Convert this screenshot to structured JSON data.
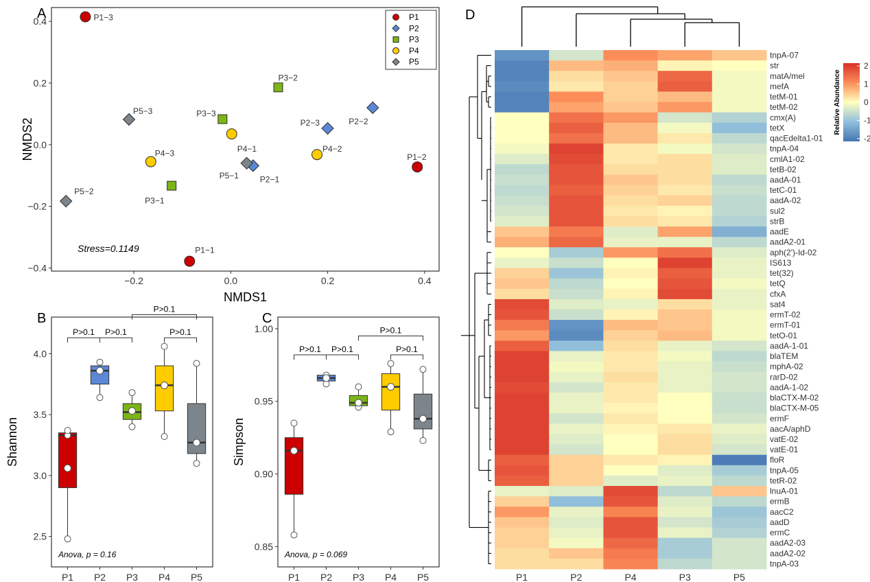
{
  "colors": {
    "P1": "#cc0000",
    "P2": "#5b87d6",
    "P3": "#7cb518",
    "P4": "#ffcc00",
    "P5": "#7d858c"
  },
  "chart_data": [
    {
      "panel": "A",
      "type": "scatter",
      "xlabel": "NMDS1",
      "ylabel": "NMDS2",
      "xlim": [
        -0.37,
        0.43
      ],
      "ylim": [
        -0.41,
        0.445
      ],
      "xticks": [
        -0.2,
        0.0,
        0.2,
        0.4
      ],
      "xtick_labels": [
        "−0.2",
        "0.0",
        "0.2",
        "0.4"
      ],
      "yticks": [
        -0.4,
        -0.2,
        0.0,
        0.2,
        0.4
      ],
      "ytick_labels": [
        "−0.4",
        "−0.2",
        "0.0",
        "0.2",
        "0.4"
      ],
      "legend": [
        "P1",
        "P2",
        "P3",
        "P4",
        "P5"
      ],
      "legend_position": "top-right",
      "stress": "Stress=0.1149",
      "points": [
        {
          "label": "P1−1",
          "group": "P1",
          "x": -0.085,
          "y": -0.378
        },
        {
          "label": "P1−2",
          "group": "P1",
          "x": 0.385,
          "y": -0.072
        },
        {
          "label": "P1−3",
          "group": "P1",
          "x": -0.3,
          "y": 0.415
        },
        {
          "label": "P2−1",
          "group": "P2",
          "x": 0.046,
          "y": -0.068
        },
        {
          "label": "P2−2",
          "group": "P2",
          "x": 0.293,
          "y": 0.12
        },
        {
          "label": "P2−3",
          "group": "P2",
          "x": 0.2,
          "y": 0.053
        },
        {
          "label": "P3−1",
          "group": "P3",
          "x": -0.122,
          "y": -0.133
        },
        {
          "label": "P3−2",
          "group": "P3",
          "x": 0.098,
          "y": 0.186
        },
        {
          "label": "P3−3",
          "group": "P3",
          "x": -0.017,
          "y": 0.083
        },
        {
          "label": "P4−1",
          "group": "P4",
          "x": 0.002,
          "y": 0.035
        },
        {
          "label": "P4−2",
          "group": "P4",
          "x": 0.178,
          "y": -0.032
        },
        {
          "label": "P4−3",
          "group": "P4",
          "x": -0.165,
          "y": -0.055
        },
        {
          "label": "P5−1",
          "group": "P5",
          "x": 0.033,
          "y": -0.06
        },
        {
          "label": "P5−2",
          "group": "P5",
          "x": -0.34,
          "y": -0.183
        },
        {
          "label": "P5−3",
          "group": "P5",
          "x": -0.21,
          "y": 0.082
        }
      ]
    },
    {
      "panel": "B",
      "type": "box",
      "ylabel": "Shannon",
      "ylim": [
        2.25,
        4.3
      ],
      "yticks": [
        2.5,
        3.0,
        3.5,
        4.0
      ],
      "ytick_labels": [
        "2.5",
        "3.0",
        "3.5",
        "4.0"
      ],
      "categories": [
        "P1",
        "P2",
        "P3",
        "P4",
        "P5"
      ],
      "boxes": [
        {
          "q1": 2.9,
          "median": 3.33,
          "q3": 3.35,
          "low": 2.48,
          "high": 3.37,
          "mean": 3.06,
          "points": [
            2.48,
            3.33,
            3.37
          ]
        },
        {
          "q1": 3.75,
          "median": 3.86,
          "q3": 3.9,
          "low": 3.64,
          "high": 3.93,
          "mean": 3.86,
          "points": [
            3.64,
            3.86,
            3.93
          ]
        },
        {
          "q1": 3.46,
          "median": 3.52,
          "q3": 3.59,
          "low": 3.4,
          "high": 3.68,
          "mean": 3.53,
          "points": [
            3.4,
            3.53,
            3.68
          ]
        },
        {
          "q1": 3.53,
          "median": 3.74,
          "q3": 3.9,
          "low": 3.32,
          "high": 4.06,
          "mean": 3.74,
          "points": [
            3.32,
            3.74,
            4.06
          ]
        },
        {
          "q1": 3.18,
          "median": 3.27,
          "q3": 3.59,
          "low": 3.1,
          "high": 3.92,
          "mean": 3.27,
          "points": [
            3.1,
            3.27,
            3.92
          ]
        }
      ],
      "comparisons": [
        {
          "from": 0,
          "to": 1,
          "y": 4.13,
          "label": "P>0.1"
        },
        {
          "from": 1,
          "to": 2,
          "y": 4.13,
          "label": "P>0.1"
        },
        {
          "from": 3,
          "to": 4,
          "y": 4.13,
          "label": "P>0.1"
        },
        {
          "from": 2,
          "to": 4,
          "y": 4.32,
          "label": "P>0.1"
        }
      ],
      "note": "Anova, p = 0.16"
    },
    {
      "panel": "C",
      "type": "box",
      "ylabel": "Simpson",
      "ylim": [
        0.836,
        1.008
      ],
      "yticks": [
        0.85,
        0.9,
        0.95,
        1.0
      ],
      "ytick_labels": [
        "0.85",
        "0.90",
        "0.95",
        "1.00"
      ],
      "categories": [
        "P1",
        "P2",
        "P3",
        "P4",
        "P5"
      ],
      "boxes": [
        {
          "q1": 0.886,
          "median": 0.916,
          "q3": 0.925,
          "low": 0.858,
          "high": 0.935,
          "mean": 0.916,
          "points": [
            0.858,
            0.916,
            0.935
          ]
        },
        {
          "q1": 0.964,
          "median": 0.966,
          "q3": 0.968,
          "low": 0.962,
          "high": 0.968,
          "mean": 0.966,
          "points": [
            0.962,
            0.966,
            0.968
          ]
        },
        {
          "q1": 0.947,
          "median": 0.949,
          "q3": 0.954,
          "low": 0.946,
          "high": 0.96,
          "mean": 0.949,
          "points": [
            0.946,
            0.949,
            0.96
          ]
        },
        {
          "q1": 0.944,
          "median": 0.96,
          "q3": 0.969,
          "low": 0.929,
          "high": 0.976,
          "mean": 0.96,
          "points": [
            0.929,
            0.96,
            0.976
          ]
        },
        {
          "q1": 0.931,
          "median": 0.938,
          "q3": 0.955,
          "low": 0.923,
          "high": 0.972,
          "mean": 0.938,
          "points": [
            0.923,
            0.938,
            0.972
          ]
        }
      ],
      "comparisons": [
        {
          "from": 0,
          "to": 1,
          "y": 0.982,
          "label": "P>0.1"
        },
        {
          "from": 1,
          "to": 2,
          "y": 0.982,
          "label": "P>0.1"
        },
        {
          "from": 3,
          "to": 4,
          "y": 0.982,
          "label": "P>0.1"
        },
        {
          "from": 2,
          "to": 4,
          "y": 0.995,
          "label": "P>0.1"
        }
      ],
      "note": "Anova, p = 0.069"
    },
    {
      "panel": "D",
      "type": "heatmap",
      "columns": [
        "P1",
        "P2",
        "P4",
        "P3",
        "P5"
      ],
      "legend_title": "Relative Abundance",
      "legend_ticks": [
        2,
        1,
        0,
        -1,
        -2
      ],
      "legend_tick_labels": [
        "2",
        "1",
        "0",
        "-1",
        "-2"
      ],
      "color_range": [
        -2,
        2
      ],
      "rows": [
        "tnpA-07",
        "str",
        "matA/mel",
        "mefA",
        "tetM-01",
        "tetM-02",
        "cmx(A)",
        "tetX",
        "qacEdelta1-01",
        "tnpA-04",
        "cmlA1-02",
        "tetB-02",
        "aadA-01",
        "tetC-01",
        "aadA-02",
        "sul2",
        "strB",
        "aadE",
        "aadA2-01",
        "aph(2')-Id-02",
        "IS613",
        "tet(32)",
        "tetQ",
        "cfxA",
        "sat4",
        "ermT-02",
        "ermT-01",
        "tetO-01",
        "aadA-1-01",
        "blaTEM",
        "mphA-02",
        "rarD-02",
        "aadA-1-02",
        "blaCTX-M-02",
        "blaCTX-M-05",
        "ermF",
        "aacA/aphD",
        "vatE-02",
        "vatE-01",
        "floR",
        "tnpA-05",
        "tetR-02",
        "lnuA-01",
        "ermB",
        "aacC2",
        "aadD",
        "ermC",
        "aadA2-03",
        "aadA2-02",
        "tnpA-03"
      ],
      "values": [
        [
          -1.6,
          -0.4,
          1.0,
          0.8,
          0.5
        ],
        [
          -1.8,
          0.6,
          0.7,
          0.1,
          0.0
        ],
        [
          -1.8,
          0.3,
          0.5,
          1.4,
          -0.1
        ],
        [
          -1.7,
          0.2,
          0.4,
          1.5,
          -0.1
        ],
        [
          -1.8,
          1.0,
          0.4,
          0.6,
          -0.1
        ],
        [
          -1.8,
          0.8,
          0.5,
          0.9,
          -0.1
        ],
        [
          0.0,
          1.3,
          0.9,
          -0.4,
          -0.7
        ],
        [
          0.0,
          1.5,
          0.6,
          -0.1,
          -1.0
        ],
        [
          0.0,
          1.3,
          0.6,
          0.2,
          -0.6
        ],
        [
          -0.1,
          1.8,
          0.2,
          -0.1,
          -0.4
        ],
        [
          -0.3,
          1.7,
          0.2,
          0.3,
          -0.3
        ],
        [
          -0.6,
          1.6,
          0.3,
          0.3,
          -0.3
        ],
        [
          -0.5,
          1.6,
          0.5,
          0.3,
          -0.6
        ],
        [
          -0.6,
          1.5,
          0.4,
          0.2,
          -0.5
        ],
        [
          -0.5,
          1.6,
          0.3,
          0.4,
          -0.6
        ],
        [
          -0.4,
          1.6,
          0.2,
          0.1,
          -0.6
        ],
        [
          -0.3,
          1.6,
          0.3,
          0.2,
          -0.7
        ],
        [
          0.5,
          1.2,
          -0.3,
          0.8,
          -1.2
        ],
        [
          0.7,
          1.4,
          -0.2,
          -0.2,
          -0.6
        ],
        [
          0.0,
          -0.8,
          0.9,
          1.3,
          -0.3
        ],
        [
          -0.2,
          -0.5,
          0.0,
          1.8,
          -0.2
        ],
        [
          0.4,
          -0.9,
          0.1,
          1.5,
          -0.2
        ],
        [
          0.5,
          -0.6,
          0.0,
          1.6,
          -0.1
        ],
        [
          0.3,
          -0.5,
          0.1,
          1.7,
          -0.2
        ],
        [
          1.7,
          -0.3,
          -0.2,
          0.3,
          -0.2
        ],
        [
          1.6,
          -0.5,
          0.1,
          0.5,
          -0.1
        ],
        [
          1.2,
          -1.6,
          0.6,
          0.5,
          -0.1
        ],
        [
          0.9,
          -1.7,
          0.4,
          0.6,
          -0.1
        ],
        [
          1.5,
          -1.0,
          0.3,
          -0.2,
          -0.4
        ],
        [
          1.8,
          -0.2,
          0.2,
          -0.1,
          -0.6
        ],
        [
          1.8,
          -0.1,
          0.2,
          -0.2,
          -0.5
        ],
        [
          1.8,
          -0.2,
          0.3,
          -0.2,
          -0.4
        ],
        [
          1.7,
          -0.4,
          0.2,
          -0.2,
          -0.4
        ],
        [
          1.8,
          -0.2,
          0.2,
          0.0,
          -0.5
        ],
        [
          1.8,
          -0.2,
          0.1,
          0.0,
          -0.5
        ],
        [
          1.8,
          -0.4,
          0.2,
          0.0,
          -0.4
        ],
        [
          1.8,
          -0.2,
          0.1,
          0.2,
          -0.2
        ],
        [
          1.8,
          -0.3,
          0.0,
          0.3,
          -0.3
        ],
        [
          1.8,
          -0.4,
          0.0,
          0.3,
          -0.4
        ],
        [
          1.5,
          0.4,
          0.2,
          0.1,
          -1.9
        ],
        [
          1.6,
          0.4,
          0.0,
          -0.3,
          -0.8
        ],
        [
          1.5,
          0.4,
          -0.3,
          -0.2,
          -0.6
        ],
        [
          -0.2,
          -0.3,
          1.7,
          -0.6,
          0.5
        ],
        [
          0.4,
          -1.0,
          1.6,
          -0.3,
          -0.6
        ],
        [
          0.9,
          -0.2,
          1.1,
          -0.2,
          -0.9
        ],
        [
          0.5,
          -0.3,
          1.6,
          -0.4,
          -0.8
        ],
        [
          0.4,
          -0.2,
          1.6,
          -0.2,
          -0.7
        ],
        [
          0.4,
          -0.1,
          1.4,
          -0.8,
          -0.4
        ],
        [
          0.3,
          0.5,
          1.2,
          -0.8,
          -0.4
        ],
        [
          0.3,
          0.3,
          1.1,
          -0.6,
          -0.4
        ]
      ]
    }
  ]
}
